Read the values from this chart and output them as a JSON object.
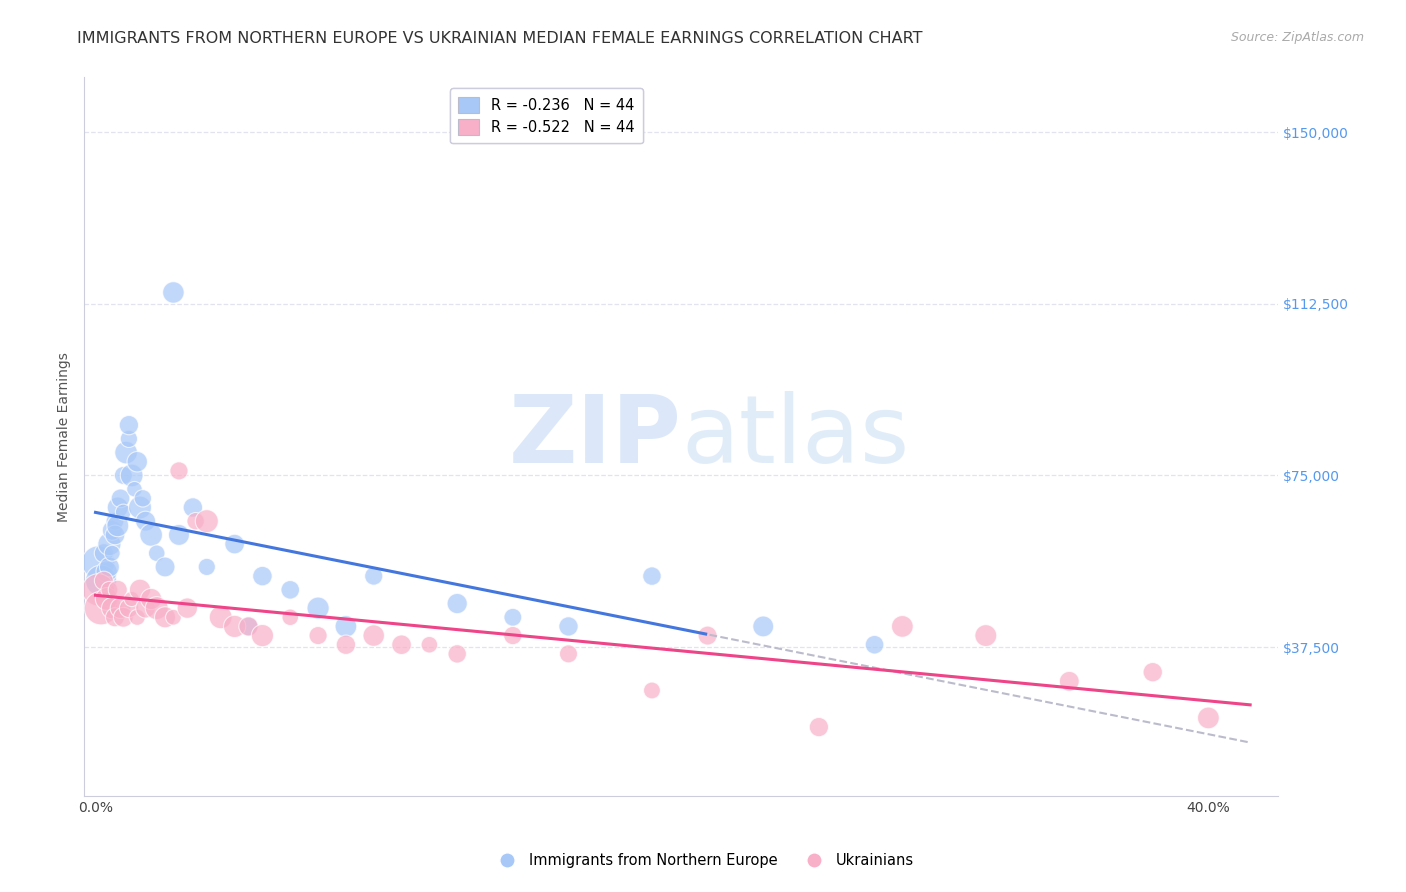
{
  "title": "IMMIGRANTS FROM NORTHERN EUROPE VS UKRAINIAN MEDIAN FEMALE EARNINGS CORRELATION CHART",
  "source": "Source: ZipAtlas.com",
  "xlabel_ticks": [
    "0.0%",
    "",
    "",
    "",
    "40.0%"
  ],
  "xlabel_tick_vals": [
    0.0,
    0.1,
    0.2,
    0.3,
    0.4
  ],
  "ylabel_ticks": [
    "$37,500",
    "$75,000",
    "$112,500",
    "$150,000"
  ],
  "ylabel_tick_vals": [
    37500,
    75000,
    112500,
    150000
  ],
  "xlim": [
    -0.004,
    0.425
  ],
  "ylim": [
    5000,
    162000
  ],
  "ylabel": "Median Female Earnings",
  "watermark_ZIP": "ZIP",
  "watermark_atlas": "atlas",
  "legend_blue_label": "R = -0.236   N = 44",
  "legend_pink_label": "R = -0.522   N = 44",
  "legend_blue_series": "Immigrants from Northern Europe",
  "legend_pink_series": "Ukrainians",
  "blue_points_x": [
    0.001,
    0.002,
    0.003,
    0.004,
    0.005,
    0.005,
    0.006,
    0.006,
    0.007,
    0.007,
    0.008,
    0.008,
    0.009,
    0.01,
    0.01,
    0.011,
    0.012,
    0.012,
    0.013,
    0.014,
    0.015,
    0.016,
    0.017,
    0.018,
    0.02,
    0.022,
    0.025,
    0.028,
    0.03,
    0.035,
    0.04,
    0.05,
    0.055,
    0.06,
    0.07,
    0.08,
    0.09,
    0.1,
    0.13,
    0.15,
    0.17,
    0.2,
    0.24,
    0.28
  ],
  "blue_points_y": [
    56000,
    52000,
    58000,
    54000,
    60000,
    55000,
    63000,
    58000,
    65000,
    62000,
    68000,
    64000,
    70000,
    67000,
    75000,
    80000,
    83000,
    86000,
    75000,
    72000,
    78000,
    68000,
    70000,
    65000,
    62000,
    58000,
    55000,
    115000,
    62000,
    68000,
    55000,
    60000,
    42000,
    53000,
    50000,
    46000,
    42000,
    53000,
    47000,
    44000,
    42000,
    53000,
    42000,
    38000
  ],
  "pink_points_x": [
    0.001,
    0.002,
    0.003,
    0.004,
    0.005,
    0.006,
    0.007,
    0.008,
    0.009,
    0.01,
    0.012,
    0.013,
    0.015,
    0.016,
    0.018,
    0.02,
    0.022,
    0.025,
    0.028,
    0.03,
    0.033,
    0.036,
    0.04,
    0.045,
    0.05,
    0.055,
    0.06,
    0.07,
    0.08,
    0.09,
    0.1,
    0.11,
    0.12,
    0.13,
    0.15,
    0.17,
    0.2,
    0.22,
    0.26,
    0.29,
    0.32,
    0.35,
    0.38,
    0.4
  ],
  "pink_points_y": [
    50000,
    46000,
    52000,
    48000,
    50000,
    46000,
    44000,
    50000,
    46000,
    44000,
    46000,
    48000,
    44000,
    50000,
    46000,
    48000,
    46000,
    44000,
    44000,
    76000,
    46000,
    65000,
    65000,
    44000,
    42000,
    42000,
    40000,
    44000,
    40000,
    38000,
    40000,
    38000,
    38000,
    36000,
    40000,
    36000,
    28000,
    40000,
    20000,
    42000,
    40000,
    30000,
    32000,
    22000
  ],
  "background_color": "#ffffff",
  "plot_bg_color": "#ffffff",
  "grid_color": "#e0e0ee",
  "blue_color": "#a8c8f8",
  "pink_color": "#f8b0c8",
  "blue_line_color": "#4477dd",
  "pink_line_color": "#ee4488",
  "dashed_line_color": "#bbbbcc",
  "title_fontsize": 11.5,
  "axis_label_fontsize": 10,
  "tick_fontsize": 10,
  "right_tick_color": "#5599ee",
  "blue_solid_xlim": 0.22,
  "pink_solid_xlim": 0.41
}
